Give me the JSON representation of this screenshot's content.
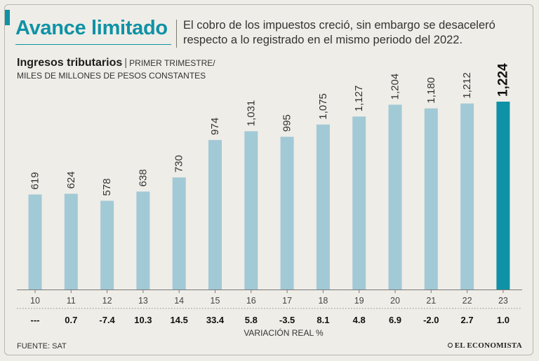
{
  "header": {
    "title": "Avance limitado",
    "subtitle": "El cobro de los impuestos creció, sin embargo se desaceleró respecto a lo registrado en el mismo periodo del 2022."
  },
  "chart_data": {
    "type": "bar",
    "title": "Ingresos tributarios",
    "unit_line_1": "PRIMER TRIMESTRE/",
    "unit_line_2": "MILES DE MILLONES DE PESOS CONSTANTES",
    "categories": [
      "10",
      "11",
      "12",
      "13",
      "14",
      "15",
      "16",
      "17",
      "18",
      "19",
      "20",
      "21",
      "22",
      "23"
    ],
    "values": [
      619,
      624,
      578,
      638,
      730,
      974,
      1031,
      995,
      1075,
      1127,
      1204,
      1180,
      1212,
      1224
    ],
    "value_labels": [
      "619",
      "624",
      "578",
      "638",
      "730",
      "974",
      "1,031",
      "995",
      "1,075",
      "1,127",
      "1,204",
      "1,180",
      "1,212",
      "1,224"
    ],
    "variation": [
      "---",
      "0.7",
      "-7.4",
      "10.3",
      "14.5",
      "33.4",
      "5.8",
      "-3.5",
      "8.1",
      "4.8",
      "6.9",
      "-2.0",
      "2.7",
      "1.0"
    ],
    "variation_label": "VARIACIÓN REAL %",
    "ylim": [
      0,
      1224
    ],
    "highlight_index": 13,
    "colors": {
      "bar": "#a2c9d6",
      "highlight": "#0f92a6"
    }
  },
  "footer": {
    "source": "FUENTE: SAT",
    "logo": "EL ECONOMISTA"
  }
}
